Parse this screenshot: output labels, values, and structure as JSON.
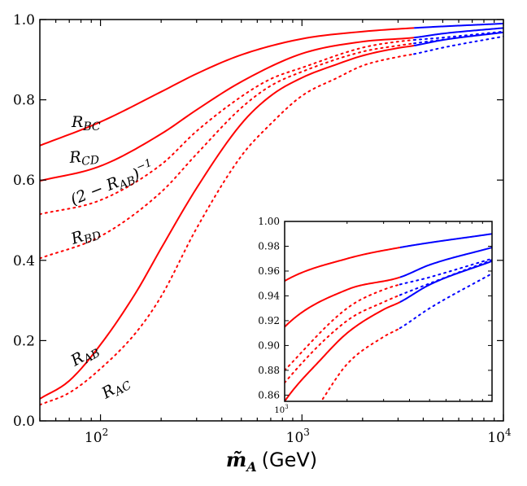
{
  "chart_data": {
    "type": "line",
    "xscale": "log",
    "xlabel_symbol": "m̃",
    "xlabel_subscript": "A",
    "xlabel_unit": "(GeV)",
    "xlim": [
      50,
      10000
    ],
    "ylim": [
      0.0,
      1.0
    ],
    "x_ticks": [
      100,
      1000,
      10000
    ],
    "x_tick_labels": [
      {
        "base": "10",
        "exp": "2"
      },
      {
        "base": "10",
        "exp": "3"
      },
      {
        "base": "10",
        "exp": "4"
      }
    ],
    "y_ticks": [
      0.0,
      0.2,
      0.4,
      0.6,
      0.8,
      1.0
    ],
    "y_tick_labels": [
      "0.0",
      "0.2",
      "0.4",
      "0.6",
      "0.8",
      "1.0"
    ],
    "color_transition_x": 3600,
    "colors": {
      "low_x": "#ff0000",
      "high_x": "#0000ff"
    },
    "series": [
      {
        "name": "R_BC",
        "label_main": "R",
        "label_sub": "BC",
        "style": "solid",
        "x": [
          50,
          100,
          200,
          300,
          500,
          1000,
          2000,
          3600,
          10000
        ],
        "y": [
          0.686,
          0.745,
          0.82,
          0.865,
          0.912,
          0.952,
          0.97,
          0.979,
          0.99
        ]
      },
      {
        "name": "R_CD",
        "label_main": "R",
        "label_sub": "CD",
        "style": "solid",
        "x": [
          50,
          100,
          200,
          300,
          500,
          1000,
          2000,
          3600,
          5000,
          10000
        ],
        "y": [
          0.598,
          0.635,
          0.715,
          0.775,
          0.845,
          0.915,
          0.945,
          0.955,
          0.965,
          0.979
        ]
      },
      {
        "name": "(2-R_AB)^-1",
        "label_main": "(2 − R",
        "label_sub": "AB",
        "label_end": ")",
        "label_sup": "−1",
        "style": "dotted",
        "x": [
          50,
          100,
          200,
          300,
          500,
          700,
          1000,
          2000,
          3000,
          5000,
          10000
        ],
        "y": [
          0.515,
          0.55,
          0.6385,
          0.722,
          0.808,
          0.852,
          0.88,
          0.93,
          0.945,
          0.955,
          0.97
        ]
      },
      {
        "name": "R_BD",
        "label_main": "R",
        "label_sub": "BD",
        "style": "dotted",
        "x": [
          50,
          100,
          200,
          300,
          500,
          700,
          1000,
          2000,
          3000,
          5000,
          10000
        ],
        "y": [
          0.405,
          0.46,
          0.57,
          0.665,
          0.78,
          0.835,
          0.87,
          0.92,
          0.935,
          0.95,
          0.969
        ]
      },
      {
        "name": "R_AB",
        "label_main": "R",
        "label_sub": "AB",
        "style": "solid",
        "x": [
          50,
          70,
          100,
          150,
          200,
          300,
          500,
          700,
          1000,
          1500,
          2000,
          3000,
          3600,
          5000,
          10000
        ],
        "y": [
          0.055,
          0.1,
          0.19,
          0.32,
          0.43,
          0.58,
          0.74,
          0.81,
          0.855,
          0.889,
          0.91,
          0.929,
          0.935,
          0.949,
          0.968
        ]
      },
      {
        "name": "R_AC",
        "label_main": "R",
        "label_sub": "AC",
        "style": "dotted",
        "x": [
          50,
          70,
          100,
          150,
          200,
          300,
          500,
          700,
          1000,
          1500,
          2000,
          3000,
          3600,
          5000,
          10000
        ],
        "y": [
          0.04,
          0.07,
          0.13,
          0.22,
          0.31,
          0.48,
          0.66,
          0.74,
          0.81,
          0.855,
          0.885,
          0.907,
          0.914,
          0.93,
          0.958
        ]
      }
    ],
    "inset": {
      "xlim": [
        1000,
        10000
      ],
      "ylim": [
        0.855,
        1.0
      ],
      "y_ticks": [
        0.86,
        0.88,
        0.9,
        0.92,
        0.94,
        0.96,
        0.98,
        1.0
      ],
      "y_tick_labels": [
        "0.86",
        "0.88",
        "0.90",
        "0.92",
        "0.94",
        "0.96",
        "0.98",
        "1.00"
      ],
      "x_tick_label": {
        "base": "10",
        "exp": "3"
      }
    }
  }
}
